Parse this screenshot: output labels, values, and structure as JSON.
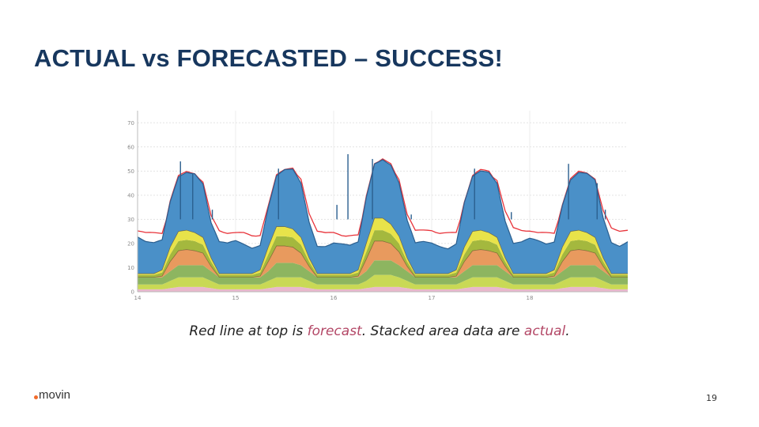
{
  "slide": {
    "title": "ACTUAL vs FORECASTED – SUCCESS!",
    "caption_parts": [
      "Red line at top is ",
      "forecast",
      ".  Stacked area data are ",
      "actual",
      "."
    ],
    "logo_text": "movin",
    "page_number": "19"
  },
  "chart_data": {
    "type": "area",
    "stacked": true,
    "x_ticks": [
      "14",
      "15",
      "16",
      "17",
      "18"
    ],
    "y_ticks": [
      "0",
      "10",
      "20",
      "30",
      "40",
      "50",
      "60",
      "70"
    ],
    "ylim": [
      0,
      75
    ],
    "xlim": [
      14,
      19
    ],
    "grid": true,
    "legend": "none",
    "hours": [
      0,
      2,
      4,
      6,
      8,
      10,
      12,
      14,
      16,
      18,
      20,
      22
    ],
    "series": [
      {
        "name": "pink layer",
        "color": "#e9b8cc",
        "values": [
          [
            1,
            1,
            1,
            1,
            1.5,
            2,
            2,
            2,
            2,
            1.5,
            1,
            1
          ],
          [
            1,
            1,
            1,
            1,
            1.5,
            2,
            2,
            2,
            2,
            1.5,
            1,
            1
          ],
          [
            1,
            1,
            1,
            1,
            1.5,
            2,
            2,
            2,
            2,
            1.5,
            1,
            1
          ],
          [
            1,
            1,
            1,
            1,
            1.5,
            2,
            2,
            2,
            2,
            1.5,
            1,
            1
          ],
          [
            1,
            1,
            1,
            1,
            1.5,
            2,
            2,
            2,
            2,
            1.5,
            1,
            1
          ]
        ]
      },
      {
        "name": "yellow-green layer",
        "color": "#c9d955",
        "values": [
          [
            2,
            2,
            2,
            2,
            3,
            4,
            4,
            4,
            4,
            3,
            2,
            2
          ],
          [
            2,
            2,
            2,
            2,
            3,
            4,
            4,
            4,
            4,
            3,
            2,
            2
          ],
          [
            2,
            2,
            2,
            2,
            3,
            5,
            5,
            5,
            4,
            3,
            2,
            2
          ],
          [
            2,
            2,
            2,
            2,
            3,
            4,
            4,
            4,
            4,
            3,
            2,
            2
          ],
          [
            2,
            2,
            2,
            2,
            3,
            4,
            4,
            4,
            4,
            3,
            2,
            2
          ]
        ]
      },
      {
        "name": "green layer",
        "color": "#8db560",
        "values": [
          [
            3,
            3,
            3,
            3,
            4,
            5,
            5,
            5,
            5,
            4,
            3,
            3
          ],
          [
            3,
            3,
            3,
            3,
            4,
            6,
            6,
            6,
            5,
            4,
            3,
            3
          ],
          [
            3,
            3,
            3,
            3,
            4,
            6,
            6,
            6,
            5,
            4,
            3,
            3
          ],
          [
            3,
            3,
            3,
            3,
            4,
            5,
            5,
            5,
            5,
            4,
            3,
            3
          ],
          [
            3,
            3,
            3,
            3,
            4,
            5,
            5,
            5,
            5,
            4,
            3,
            3
          ]
        ]
      },
      {
        "name": "orange layer",
        "color": "#e89a5e",
        "values": [
          [
            0,
            0,
            0,
            0.5,
            4,
            6,
            6.5,
            6,
            5,
            2,
            0,
            0
          ],
          [
            0,
            0,
            0,
            0.5,
            4,
            7,
            7,
            6.5,
            5,
            2,
            0,
            0
          ],
          [
            0,
            0,
            0,
            0.5,
            5,
            8,
            8,
            7,
            5.5,
            2,
            0,
            0
          ],
          [
            0,
            0,
            0,
            0.5,
            4,
            6,
            6.5,
            6,
            5,
            2,
            0,
            0
          ],
          [
            0,
            0,
            0,
            0.5,
            4,
            6,
            6.5,
            6,
            5,
            2,
            0,
            0
          ]
        ]
      },
      {
        "name": "olive layer",
        "color": "#a4b83e",
        "values": [
          [
            1,
            1,
            1,
            1.5,
            3,
            4,
            4,
            4,
            3.5,
            2,
            1,
            1
          ],
          [
            1,
            1,
            1,
            1.5,
            3,
            4,
            4,
            4,
            3.5,
            2,
            1,
            1
          ],
          [
            1,
            1,
            1,
            1.5,
            3,
            4.5,
            4.5,
            4,
            3.5,
            2,
            1,
            1
          ],
          [
            1,
            1,
            1,
            1.5,
            3,
            4,
            4,
            4,
            3.5,
            2,
            1,
            1
          ],
          [
            1,
            1,
            1,
            1.5,
            3,
            4,
            4,
            4,
            3.5,
            2,
            1,
            1
          ]
        ]
      },
      {
        "name": "bright yellow layer",
        "color": "#e8e34a",
        "values": [
          [
            0.5,
            0.5,
            0.5,
            1,
            3,
            4,
            4,
            3.5,
            3,
            1.5,
            0.5,
            0.5
          ],
          [
            0.5,
            0.5,
            0.5,
            1,
            3,
            4,
            4,
            3.5,
            3,
            1.5,
            0.5,
            0.5
          ],
          [
            0.5,
            0.5,
            0.5,
            1,
            3.5,
            5,
            5,
            4,
            3,
            1.5,
            0.5,
            0.5
          ],
          [
            0.5,
            0.5,
            0.5,
            1,
            3,
            4,
            4,
            3.5,
            3,
            1.5,
            0.5,
            0.5
          ],
          [
            0.5,
            0.5,
            0.5,
            1,
            3,
            4,
            4,
            3.5,
            3,
            1.5,
            0.5,
            0.5
          ]
        ]
      },
      {
        "name": "blue layer",
        "color": "#4a90c8",
        "values": [
          [
            16,
            14,
            13,
            12,
            18,
            22,
            24,
            25,
            23,
            15,
            13,
            12
          ],
          [
            13,
            12,
            11,
            11,
            17,
            21,
            23,
            24,
            22,
            15,
            12,
            12
          ],
          [
            13,
            12,
            11,
            11,
            19,
            23,
            25,
            25,
            22,
            15,
            12,
            13
          ],
          [
            13,
            12,
            11,
            11,
            18,
            22,
            24,
            25,
            23,
            16,
            13,
            13
          ],
          [
            14,
            13,
            12,
            12,
            18,
            22,
            24,
            24,
            23,
            16,
            13,
            12
          ]
        ]
      }
    ],
    "forecast_line": {
      "name": "forecast",
      "color": "#e8333a",
      "values": [
        [
          25,
          24,
          24,
          24,
          34,
          45,
          47,
          48,
          45,
          31,
          25,
          24
        ],
        [
          24,
          24,
          23,
          23,
          35,
          46,
          48,
          48,
          46,
          32,
          25,
          24
        ],
        [
          24,
          23,
          23,
          23,
          37,
          50,
          52,
          50,
          46,
          32,
          25,
          25
        ],
        [
          25,
          24,
          24,
          24,
          35,
          45,
          48,
          48,
          46,
          33,
          26,
          25
        ],
        [
          25,
          24,
          24,
          24,
          35,
          45,
          47,
          47,
          46,
          33,
          26,
          25
        ]
      ]
    },
    "spikes": [
      {
        "day": 0,
        "hour": 10.5,
        "value": 54
      },
      {
        "day": 0,
        "hour": 13.5,
        "value": 49
      },
      {
        "day": 0,
        "hour": 18.3,
        "value": 34
      },
      {
        "day": 1,
        "hour": 10.5,
        "value": 51
      },
      {
        "day": 2,
        "hour": 0.8,
        "value": 36
      },
      {
        "day": 2,
        "hour": 3.5,
        "value": 57
      },
      {
        "day": 2,
        "hour": 9.5,
        "value": 55
      },
      {
        "day": 2,
        "hour": 19,
        "value": 32
      },
      {
        "day": 3,
        "hour": 10.5,
        "value": 51
      },
      {
        "day": 3,
        "hour": 19.5,
        "value": 33
      },
      {
        "day": 4,
        "hour": 9.5,
        "value": 53
      },
      {
        "day": 4,
        "hour": 16.5,
        "value": 45
      },
      {
        "day": 4,
        "hour": 18.5,
        "value": 34
      }
    ]
  }
}
